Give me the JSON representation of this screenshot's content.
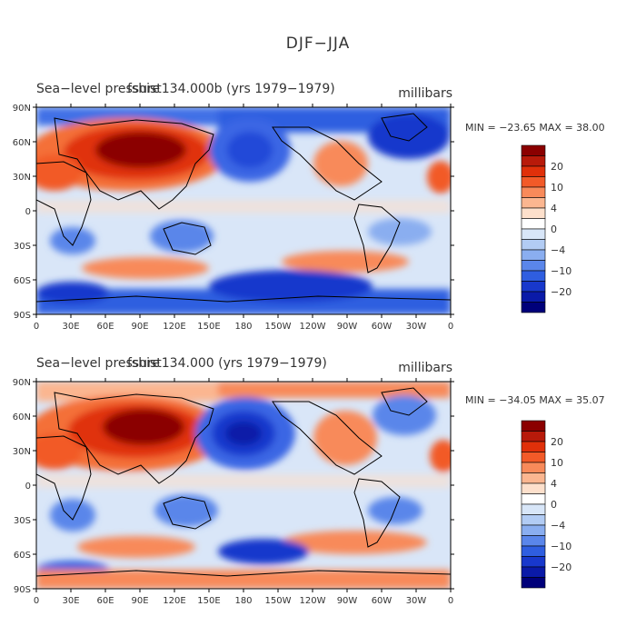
{
  "main_title": "DJF−JJA",
  "panels": [
    {
      "title": "Sea−level pressure",
      "subtitle": "fshist134.000b (yrs 1979−1979)",
      "units": "millibars",
      "min_label": "MIN =",
      "min_value": "−23.65",
      "max_label": "MAX =",
      "max_value": "38.00"
    },
    {
      "title": "Sea−level pressure",
      "subtitle": "fshist134.000 (yrs 1979−1979)",
      "units": "millibars",
      "min_label": "MIN =",
      "min_value": "−34.05",
      "max_label": "MAX =",
      "max_value": "35.07"
    }
  ],
  "lat_labels": [
    "90N",
    "60N",
    "30N",
    "0",
    "30S",
    "60S",
    "90S"
  ],
  "lon_labels": [
    "0",
    "30E",
    "60E",
    "90E",
    "120E",
    "150E",
    "180",
    "150W",
    "120W",
    "90W",
    "60W",
    "30W",
    "0"
  ],
  "colorbar": {
    "labels": [
      "20",
      "10",
      "4",
      "0",
      "−4",
      "−10",
      "−20"
    ],
    "colors": [
      "#8b0000",
      "#b81a0a",
      "#e0300a",
      "#f25a28",
      "#f88a5a",
      "#fbb690",
      "#fde0cc",
      "#ffffff",
      "#d8e6f8",
      "#b2ccf4",
      "#8aaef0",
      "#5a86ea",
      "#2f5ee0",
      "#1838cc",
      "#0a1aa8",
      "#00007a"
    ]
  }
}
